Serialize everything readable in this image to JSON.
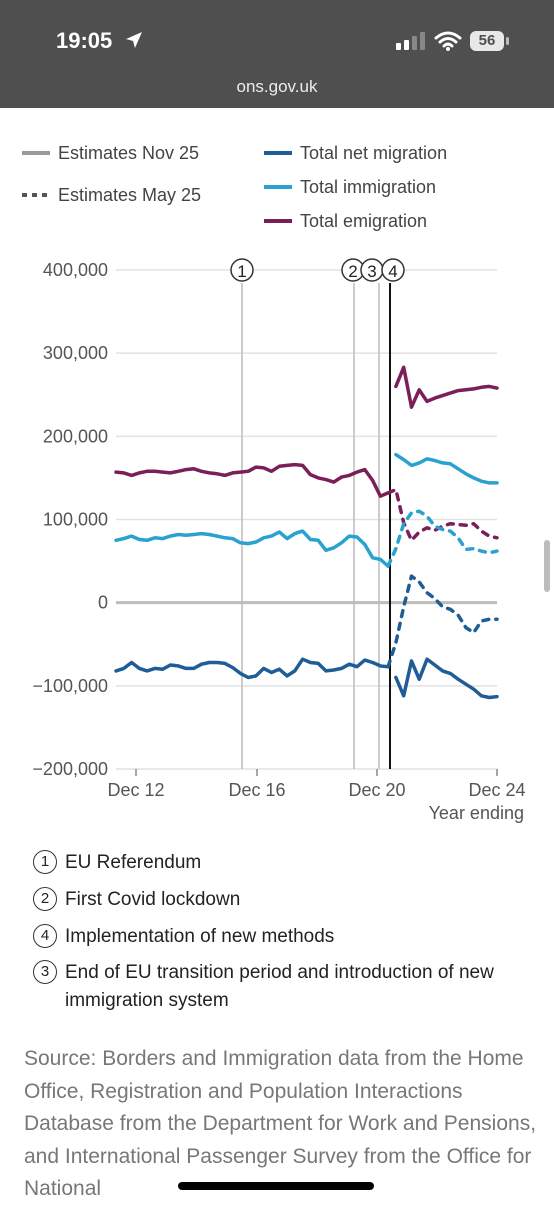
{
  "status_bar": {
    "time": "19:05",
    "battery": "56"
  },
  "browser": {
    "url": "ons.gov.uk"
  },
  "legend": {
    "estimates_nov": "Estimates Nov 25",
    "estimates_may": "Estimates May 25",
    "net": "Total net migration",
    "immigration": "Total immigration",
    "emigration": "Total emigration"
  },
  "chart_data": {
    "type": "line",
    "xlabel": "Year ending",
    "x_ticks": [
      "Dec 12",
      "Dec 16",
      "Dec 20",
      "Dec 24"
    ],
    "y_ticks": [
      "400,000",
      "300,000",
      "200,000",
      "100,000",
      "0",
      "−100,000",
      "−200,000"
    ],
    "ylim": [
      -200000,
      400000
    ],
    "xlim": [
      2011.75,
      2024.0
    ],
    "annotation_markers": [
      {
        "label": "1",
        "x": 2016.5
      },
      {
        "label": "2",
        "x": 2020.25
      },
      {
        "label": "3",
        "x": 2021.0
      },
      {
        "label": "4",
        "x": 2021.25
      }
    ],
    "series": [
      {
        "name": "Total emigration",
        "estimate": "Nov 25",
        "color": "#7b1f5b",
        "points": [
          [
            2011.75,
            157000
          ],
          [
            2012.0,
            156000
          ],
          [
            2012.25,
            153000
          ],
          [
            2012.5,
            156000
          ],
          [
            2012.75,
            158000
          ],
          [
            2013.0,
            158000
          ],
          [
            2013.25,
            157000
          ],
          [
            2013.5,
            156000
          ],
          [
            2013.75,
            158000
          ],
          [
            2014.0,
            160000
          ],
          [
            2014.25,
            161000
          ],
          [
            2014.5,
            158000
          ],
          [
            2014.75,
            156000
          ],
          [
            2015.0,
            155000
          ],
          [
            2015.25,
            153000
          ],
          [
            2015.5,
            156000
          ],
          [
            2015.75,
            157000
          ],
          [
            2016.0,
            158000
          ],
          [
            2016.25,
            163000
          ],
          [
            2016.5,
            162000
          ],
          [
            2016.75,
            158000
          ],
          [
            2017.0,
            164000
          ],
          [
            2017.25,
            165000
          ],
          [
            2017.5,
            166000
          ],
          [
            2017.75,
            165000
          ],
          [
            2018.0,
            154000
          ],
          [
            2018.25,
            150000
          ],
          [
            2018.5,
            148000
          ],
          [
            2018.75,
            145000
          ],
          [
            2019.0,
            151000
          ],
          [
            2019.25,
            153000
          ],
          [
            2019.5,
            157000
          ],
          [
            2019.75,
            160000
          ],
          [
            2020.0,
            147000
          ],
          [
            2020.25,
            128000
          ],
          [
            2020.5,
            132000
          ]
        ]
      },
      {
        "name": "Total emigration",
        "estimate": "May 25",
        "color": "#7b1f5b",
        "points": [
          [
            2020.5,
            132000
          ],
          [
            2020.75,
            136000
          ],
          [
            2021.0,
            96000
          ],
          [
            2021.25,
            75000
          ],
          [
            2021.5,
            85000
          ],
          [
            2021.75,
            90000
          ],
          [
            2022.0,
            87000
          ],
          [
            2022.25,
            92000
          ],
          [
            2022.5,
            95000
          ],
          [
            2022.75,
            94000
          ],
          [
            2023.0,
            93000
          ],
          [
            2023.25,
            95000
          ],
          [
            2023.5,
            86000
          ],
          [
            2023.75,
            80000
          ],
          [
            2024.0,
            78000
          ]
        ]
      },
      {
        "name": "Total emigration",
        "estimate": "Nov 25",
        "color": "#7b1f5b",
        "points": [
          [
            2020.75,
            260000
          ],
          [
            2021.0,
            283000
          ],
          [
            2021.25,
            235000
          ],
          [
            2021.5,
            256000
          ],
          [
            2021.75,
            242000
          ],
          [
            2022.0,
            246000
          ],
          [
            2022.25,
            249000
          ],
          [
            2022.5,
            252000
          ],
          [
            2022.75,
            255000
          ],
          [
            2023.0,
            256000
          ],
          [
            2023.25,
            257000
          ],
          [
            2023.5,
            259000
          ],
          [
            2023.75,
            260000
          ],
          [
            2024.0,
            258000
          ]
        ]
      },
      {
        "name": "Total immigration",
        "estimate": "Nov 25",
        "color": "#2aa2d0",
        "points": [
          [
            2011.75,
            75000
          ],
          [
            2012.0,
            77000
          ],
          [
            2012.25,
            80000
          ],
          [
            2012.5,
            76000
          ],
          [
            2012.75,
            75000
          ],
          [
            2013.0,
            78000
          ],
          [
            2013.25,
            77000
          ],
          [
            2013.5,
            80000
          ],
          [
            2013.75,
            82000
          ],
          [
            2014.0,
            81000
          ],
          [
            2014.25,
            82000
          ],
          [
            2014.5,
            83000
          ],
          [
            2014.75,
            82000
          ],
          [
            2015.0,
            80000
          ],
          [
            2015.25,
            78000
          ],
          [
            2015.5,
            77000
          ],
          [
            2015.75,
            72000
          ],
          [
            2016.0,
            71000
          ],
          [
            2016.25,
            73000
          ],
          [
            2016.5,
            78000
          ],
          [
            2016.75,
            80000
          ],
          [
            2017.0,
            85000
          ],
          [
            2017.25,
            77000
          ],
          [
            2017.5,
            83000
          ],
          [
            2017.75,
            86000
          ],
          [
            2018.0,
            76000
          ],
          [
            2018.25,
            75000
          ],
          [
            2018.5,
            63000
          ],
          [
            2018.75,
            66000
          ],
          [
            2019.0,
            72000
          ],
          [
            2019.25,
            80000
          ],
          [
            2019.5,
            79000
          ],
          [
            2019.75,
            70000
          ],
          [
            2020.0,
            54000
          ],
          [
            2020.25,
            52000
          ],
          [
            2020.5,
            44000
          ]
        ]
      },
      {
        "name": "Total immigration",
        "estimate": "May 25",
        "color": "#2aa2d0",
        "points": [
          [
            2020.5,
            44000
          ],
          [
            2020.75,
            65000
          ],
          [
            2021.0,
            95000
          ],
          [
            2021.25,
            108000
          ],
          [
            2021.5,
            110000
          ],
          [
            2021.75,
            104000
          ],
          [
            2022.0,
            92000
          ],
          [
            2022.25,
            88000
          ],
          [
            2022.5,
            86000
          ],
          [
            2022.75,
            78000
          ],
          [
            2023.0,
            64000
          ],
          [
            2023.25,
            65000
          ],
          [
            2023.5,
            62000
          ],
          [
            2023.75,
            60000
          ],
          [
            2024.0,
            62000
          ]
        ]
      },
      {
        "name": "Total immigration",
        "estimate": "Nov 25",
        "color": "#2aa2d0",
        "points": [
          [
            2020.75,
            178000
          ],
          [
            2021.0,
            172000
          ],
          [
            2021.25,
            165000
          ],
          [
            2021.5,
            168000
          ],
          [
            2021.75,
            173000
          ],
          [
            2022.0,
            171000
          ],
          [
            2022.25,
            168000
          ],
          [
            2022.5,
            167000
          ],
          [
            2022.75,
            161000
          ],
          [
            2023.0,
            155000
          ],
          [
            2023.25,
            150000
          ],
          [
            2023.5,
            146000
          ],
          [
            2023.75,
            144000
          ],
          [
            2024.0,
            144000
          ]
        ]
      },
      {
        "name": "Total net migration",
        "estimate": "Nov 25",
        "color": "#1f5d96",
        "points": [
          [
            2011.75,
            -82000
          ],
          [
            2012.0,
            -79000
          ],
          [
            2012.25,
            -72000
          ],
          [
            2012.5,
            -79000
          ],
          [
            2012.75,
            -82000
          ],
          [
            2013.0,
            -79000
          ],
          [
            2013.25,
            -80000
          ],
          [
            2013.5,
            -75000
          ],
          [
            2013.75,
            -76000
          ],
          [
            2014.0,
            -79000
          ],
          [
            2014.25,
            -79000
          ],
          [
            2014.5,
            -74000
          ],
          [
            2014.75,
            -72000
          ],
          [
            2015.0,
            -72000
          ],
          [
            2015.25,
            -73000
          ],
          [
            2015.5,
            -78000
          ],
          [
            2015.75,
            -85000
          ],
          [
            2016.0,
            -90000
          ],
          [
            2016.25,
            -88000
          ],
          [
            2016.5,
            -79000
          ],
          [
            2016.75,
            -84000
          ],
          [
            2017.0,
            -80000
          ],
          [
            2017.25,
            -88000
          ],
          [
            2017.5,
            -82000
          ],
          [
            2017.75,
            -68000
          ],
          [
            2018.0,
            -72000
          ],
          [
            2018.25,
            -73000
          ],
          [
            2018.5,
            -82000
          ],
          [
            2018.75,
            -81000
          ],
          [
            2019.0,
            -79000
          ],
          [
            2019.25,
            -74000
          ],
          [
            2019.5,
            -77000
          ],
          [
            2019.75,
            -69000
          ],
          [
            2020.0,
            -72000
          ],
          [
            2020.25,
            -76000
          ],
          [
            2020.5,
            -77000
          ]
        ]
      },
      {
        "name": "Total net migration",
        "estimate": "May 25",
        "color": "#1f5d96",
        "points": [
          [
            2020.5,
            -77000
          ],
          [
            2020.75,
            -48000
          ],
          [
            2021.0,
            -5000
          ],
          [
            2021.25,
            32000
          ],
          [
            2021.5,
            25000
          ],
          [
            2021.75,
            12000
          ],
          [
            2022.0,
            5000
          ],
          [
            2022.25,
            -5000
          ],
          [
            2022.5,
            -8000
          ],
          [
            2022.75,
            -15000
          ],
          [
            2023.0,
            -30000
          ],
          [
            2023.25,
            -36000
          ],
          [
            2023.5,
            -22000
          ],
          [
            2023.75,
            -20000
          ],
          [
            2024.0,
            -20000
          ]
        ]
      },
      {
        "name": "Total net migration",
        "estimate": "Nov 25",
        "color": "#1f5d96",
        "points": [
          [
            2020.75,
            -90000
          ],
          [
            2021.0,
            -112000
          ],
          [
            2021.25,
            -70000
          ],
          [
            2021.5,
            -92000
          ],
          [
            2021.75,
            -68000
          ],
          [
            2022.0,
            -75000
          ],
          [
            2022.25,
            -82000
          ],
          [
            2022.5,
            -85000
          ],
          [
            2022.75,
            -92000
          ],
          [
            2023.0,
            -98000
          ],
          [
            2023.25,
            -104000
          ],
          [
            2023.5,
            -112000
          ],
          [
            2023.75,
            -114000
          ],
          [
            2024.0,
            -113000
          ]
        ]
      }
    ]
  },
  "notes": [
    {
      "num": "1",
      "text": "EU Referendum"
    },
    {
      "num": "2",
      "text": "First Covid lockdown"
    },
    {
      "num": "4",
      "text": "Implementation of new methods"
    },
    {
      "num": "3",
      "text": "End of EU transition period and introduction of new immigration system"
    }
  ],
  "source": "Source: Borders and Immigration data from the Home Office, Registration and Population Interactions Database from the Department for Work and Pensions, and International Passenger Survey from the Office for National"
}
